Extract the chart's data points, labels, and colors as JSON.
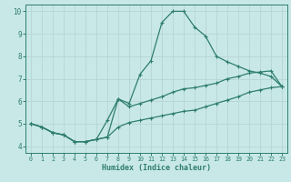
{
  "xlabel": "Humidex (Indice chaleur)",
  "xlim": [
    -0.5,
    23.5
  ],
  "ylim": [
    3.7,
    10.3
  ],
  "yticks": [
    4,
    5,
    6,
    7,
    8,
    9,
    10
  ],
  "xticks": [
    0,
    1,
    2,
    3,
    4,
    5,
    6,
    7,
    8,
    9,
    10,
    11,
    12,
    13,
    14,
    15,
    16,
    17,
    18,
    19,
    20,
    21,
    22,
    23
  ],
  "background_color": "#c8e8e8",
  "grid_color": "#b0d0d0",
  "line_color": "#2e7d6e",
  "line1_x": [
    0,
    1,
    2,
    3,
    4,
    5,
    6,
    7,
    8,
    9,
    10,
    11,
    12,
    13,
    14,
    15,
    16,
    17,
    18,
    19,
    20,
    21,
    22,
    23
  ],
  "line1_y": [
    5.0,
    4.85,
    4.6,
    4.5,
    4.2,
    4.2,
    4.3,
    4.4,
    6.1,
    5.9,
    7.2,
    7.8,
    9.5,
    10.0,
    10.0,
    9.3,
    8.9,
    8.0,
    7.75,
    7.55,
    7.35,
    7.25,
    7.1,
    6.65
  ],
  "line2_x": [
    0,
    1,
    2,
    3,
    4,
    5,
    6,
    7,
    8,
    9,
    10,
    11,
    12,
    13,
    14,
    15,
    16,
    17,
    18,
    19,
    20,
    21,
    22,
    23
  ],
  "line2_y": [
    5.0,
    4.85,
    4.6,
    4.5,
    4.2,
    4.2,
    4.3,
    5.15,
    6.1,
    5.75,
    5.9,
    6.05,
    6.2,
    6.4,
    6.55,
    6.6,
    6.7,
    6.8,
    7.0,
    7.1,
    7.25,
    7.3,
    7.35,
    6.65
  ],
  "line3_x": [
    0,
    1,
    2,
    3,
    4,
    5,
    6,
    7,
    8,
    9,
    10,
    11,
    12,
    13,
    14,
    15,
    16,
    17,
    18,
    19,
    20,
    21,
    22,
    23
  ],
  "line3_y": [
    5.0,
    4.85,
    4.6,
    4.5,
    4.2,
    4.2,
    4.3,
    4.4,
    4.85,
    5.05,
    5.15,
    5.25,
    5.35,
    5.45,
    5.55,
    5.6,
    5.75,
    5.9,
    6.05,
    6.2,
    6.4,
    6.5,
    6.6,
    6.65
  ]
}
